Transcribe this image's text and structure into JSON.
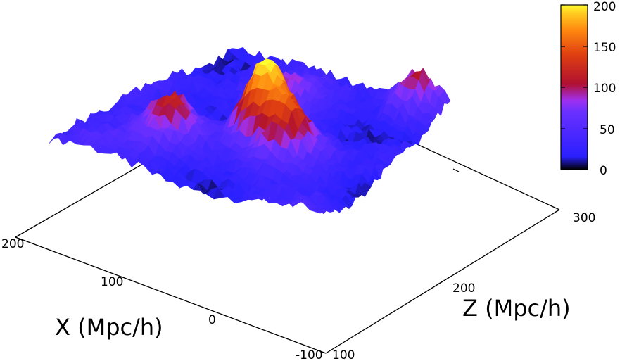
{
  "chart_data": {
    "type": "surface",
    "title": "",
    "xlabel": "X (Mpc/h)",
    "zlabel": "Z (Mpc/h)",
    "x_ticks": [
      "200",
      "100",
      "0",
      "-100"
    ],
    "z_ticks": [
      "100",
      "200",
      "300"
    ],
    "xlim": [
      -100,
      200
    ],
    "zlim": [
      100,
      300
    ],
    "colorbar": {
      "range": [
        0,
        200
      ],
      "ticks": [
        "0",
        "50",
        "100",
        "150",
        "200"
      ],
      "palette": [
        "#000000",
        "#3a20ff",
        "#8a30ff",
        "#c02030",
        "#ff7010",
        "#ffff20"
      ]
    },
    "peaks": [
      {
        "x": 40,
        "z": 190,
        "value": 195
      },
      {
        "x": 0,
        "z": 175,
        "value": 130
      },
      {
        "x": 110,
        "z": 150,
        "value": 105
      },
      {
        "x": 130,
        "z": 170,
        "value": 90
      },
      {
        "x": -60,
        "z": 290,
        "value": 110
      },
      {
        "x": 60,
        "z": 240,
        "value": 80
      }
    ],
    "grid": false,
    "legend": "colorbar right"
  },
  "colors": {
    "low": "#2e22f0",
    "mid": "#9a3aff",
    "high_red": "#c8201f",
    "high_orange": "#ff7a10",
    "peak": "#ffff30"
  }
}
